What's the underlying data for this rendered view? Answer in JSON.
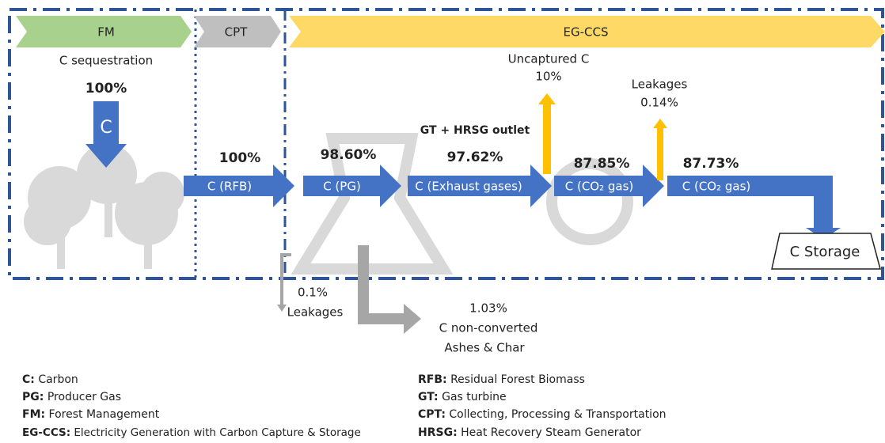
{
  "stages": [
    {
      "label": "FM"
    },
    {
      "label": "CPT"
    },
    {
      "label": "EG-CCS"
    }
  ],
  "fm": {
    "caption": "C sequestration",
    "percent": "100%",
    "arrow_label": "C"
  },
  "flows": [
    {
      "percent": "100%",
      "label": "C (RFB)"
    },
    {
      "percent": "98.60%",
      "label": "C (PG)"
    },
    {
      "note": "GT + HRSG outlet",
      "percent": "97.62%",
      "label": "C (Exhaust gases)"
    },
    {
      "percent": "87.85%",
      "label": "C (CO₂ gas)"
    },
    {
      "percent": "87.73%",
      "label": "C (CO₂ gas)"
    }
  ],
  "losses": [
    {
      "label": "Uncaptured C",
      "percent": "10%"
    },
    {
      "label": "Leakages",
      "percent": "0.14%"
    },
    {
      "percent": "0.1%",
      "label": "Leakages"
    },
    {
      "percent": "1.03%",
      "label": "C non-converted",
      "sublabel": "Ashes & Char"
    }
  ],
  "storage": "C Storage",
  "legend": [
    {
      "term": "C:",
      "text": "Carbon"
    },
    {
      "term": "PG:",
      "text": "Producer Gas"
    },
    {
      "term": "FM:",
      "text": "Forest Management"
    },
    {
      "term": "EG-CCS:",
      "text": "Electricity Generation with Carbon Capture & Storage"
    },
    {
      "term": "RFB:",
      "text": "Residual Forest Biomass"
    },
    {
      "term": "GT:",
      "text": "Gas turbine"
    },
    {
      "term": "CPT:",
      "text": "Collecting, Processing & Transportation"
    },
    {
      "term": "HRSG:",
      "text": "Heat Recovery Steam Generator"
    }
  ]
}
